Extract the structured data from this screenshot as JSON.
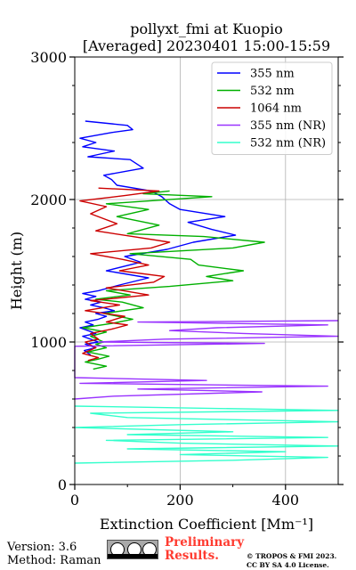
{
  "chart_data": {
    "type": "line",
    "title": "pollyxt_fmi at Kuopio",
    "subtitle": "[Averaged] 20230401 15:00-15:59",
    "xlabel": "Extinction Coefficient [Mm⁻¹]",
    "ylabel": "Height (m)",
    "xlim": [
      0,
      500
    ],
    "ylim": [
      0,
      3000
    ],
    "xticks": [
      "0",
      "200",
      "400"
    ],
    "yticks": [
      "0",
      "1000",
      "2000",
      "3000"
    ],
    "grid": true,
    "legend_position": "top-right",
    "series": [
      {
        "name": "355 nm",
        "color": "#0000ff",
        "points": [
          [
            30,
            910
          ],
          [
            18,
            940
          ],
          [
            40,
            960
          ],
          [
            20,
            985
          ],
          [
            45,
            1000
          ],
          [
            30,
            1020
          ],
          [
            15,
            1040
          ],
          [
            40,
            1060
          ],
          [
            25,
            1080
          ],
          [
            10,
            1100
          ],
          [
            35,
            1120
          ],
          [
            20,
            1140
          ],
          [
            45,
            1160
          ],
          [
            60,
            1180
          ],
          [
            40,
            1200
          ],
          [
            75,
            1220
          ],
          [
            55,
            1240
          ],
          [
            30,
            1260
          ],
          [
            50,
            1280
          ],
          [
            20,
            1300
          ],
          [
            40,
            1320
          ],
          [
            15,
            1340
          ],
          [
            45,
            1360
          ],
          [
            85,
            1400
          ],
          [
            140,
            1450
          ],
          [
            60,
            1500
          ],
          [
            125,
            1560
          ],
          [
            95,
            1600
          ],
          [
            175,
            1650
          ],
          [
            225,
            1700
          ],
          [
            305,
            1750
          ],
          [
            260,
            1790
          ],
          [
            215,
            1840
          ],
          [
            285,
            1880
          ],
          [
            200,
            1930
          ],
          [
            180,
            1970
          ],
          [
            165,
            2020
          ],
          [
            145,
            2060
          ],
          [
            80,
            2100
          ],
          [
            70,
            2140
          ],
          [
            55,
            2170
          ],
          [
            130,
            2220
          ],
          [
            105,
            2280
          ],
          [
            25,
            2300
          ],
          [
            75,
            2340
          ],
          [
            15,
            2370
          ],
          [
            40,
            2400
          ],
          [
            10,
            2430
          ],
          [
            70,
            2470
          ],
          [
            110,
            2490
          ],
          [
            100,
            2520
          ],
          [
            20,
            2550
          ]
        ]
      },
      {
        "name": "532 nm",
        "color": "#00b000",
        "points": [
          [
            35,
            810
          ],
          [
            60,
            830
          ],
          [
            20,
            860
          ],
          [
            45,
            880
          ],
          [
            65,
            900
          ],
          [
            25,
            930
          ],
          [
            60,
            960
          ],
          [
            40,
            985
          ],
          [
            55,
            1000
          ],
          [
            30,
            1040
          ],
          [
            60,
            1070
          ],
          [
            15,
            1100
          ],
          [
            70,
            1130
          ],
          [
            110,
            1160
          ],
          [
            55,
            1200
          ],
          [
            130,
            1240
          ],
          [
            90,
            1280
          ],
          [
            40,
            1300
          ],
          [
            105,
            1330
          ],
          [
            60,
            1360
          ],
          [
            180,
            1390
          ],
          [
            300,
            1430
          ],
          [
            250,
            1460
          ],
          [
            320,
            1500
          ],
          [
            235,
            1540
          ],
          [
            220,
            1580
          ],
          [
            105,
            1620
          ],
          [
            300,
            1660
          ],
          [
            360,
            1700
          ],
          [
            245,
            1740
          ],
          [
            100,
            1760
          ],
          [
            160,
            1820
          ],
          [
            80,
            1880
          ],
          [
            140,
            1930
          ],
          [
            60,
            1970
          ],
          [
            260,
            2020
          ],
          [
            130,
            2040
          ],
          [
            180,
            2060
          ]
        ]
      },
      {
        "name": "1064 nm",
        "color": "#cc0000",
        "points": [
          [
            25,
            870
          ],
          [
            45,
            890
          ],
          [
            15,
            920
          ],
          [
            40,
            960
          ],
          [
            20,
            1000
          ],
          [
            45,
            1020
          ],
          [
            30,
            1060
          ],
          [
            70,
            1090
          ],
          [
            100,
            1120
          ],
          [
            60,
            1140
          ],
          [
            95,
            1180
          ],
          [
            20,
            1220
          ],
          [
            85,
            1260
          ],
          [
            30,
            1290
          ],
          [
            140,
            1330
          ],
          [
            60,
            1380
          ],
          [
            150,
            1420
          ],
          [
            170,
            1460
          ],
          [
            85,
            1500
          ],
          [
            140,
            1540
          ],
          [
            90,
            1580
          ],
          [
            30,
            1620
          ],
          [
            145,
            1660
          ],
          [
            180,
            1700
          ],
          [
            110,
            1740
          ],
          [
            40,
            1780
          ],
          [
            80,
            1830
          ],
          [
            30,
            1900
          ],
          [
            60,
            1950
          ],
          [
            10,
            1990
          ],
          [
            100,
            2030
          ],
          [
            160,
            2060
          ],
          [
            45,
            2080
          ]
        ]
      },
      {
        "name": "355 nm (NR)",
        "color": "#9933ff",
        "points": [
          [
            0,
            600
          ],
          [
            75,
            620
          ],
          [
            355,
            650
          ],
          [
            120,
            670
          ],
          [
            480,
            690
          ],
          [
            10,
            710
          ],
          [
            250,
            730
          ],
          [
            0,
            750
          ],
          [
            0,
            970
          ],
          [
            360,
            990
          ],
          [
            45,
            1000
          ],
          [
            170,
            1020
          ],
          [
            500,
            1040
          ],
          [
            320,
            1060
          ],
          [
            180,
            1080
          ],
          [
            270,
            1100
          ],
          [
            480,
            1120
          ],
          [
            120,
            1140
          ],
          [
            500,
            1150
          ]
        ]
      },
      {
        "name": "532 nm (NR)",
        "color": "#33ffcc",
        "points": [
          [
            0,
            150
          ],
          [
            300,
            170
          ],
          [
            480,
            190
          ],
          [
            200,
            210
          ],
          [
            400,
            230
          ],
          [
            100,
            250
          ],
          [
            500,
            270
          ],
          [
            200,
            290
          ],
          [
            60,
            310
          ],
          [
            480,
            330
          ],
          [
            100,
            350
          ],
          [
            300,
            370
          ],
          [
            0,
            400
          ],
          [
            200,
            420
          ],
          [
            500,
            440
          ],
          [
            100,
            470
          ],
          [
            30,
            500
          ],
          [
            500,
            520
          ],
          [
            0,
            550
          ]
        ]
      }
    ]
  },
  "footer": {
    "version": "Version: 3.6",
    "method": "Method: Raman",
    "preliminary_line1": "Preliminary",
    "preliminary_line2": "Results.",
    "copyright_line1": "© TROPOS & FMI 2023.",
    "copyright_line2": "CC BY SA 4.0 License."
  }
}
